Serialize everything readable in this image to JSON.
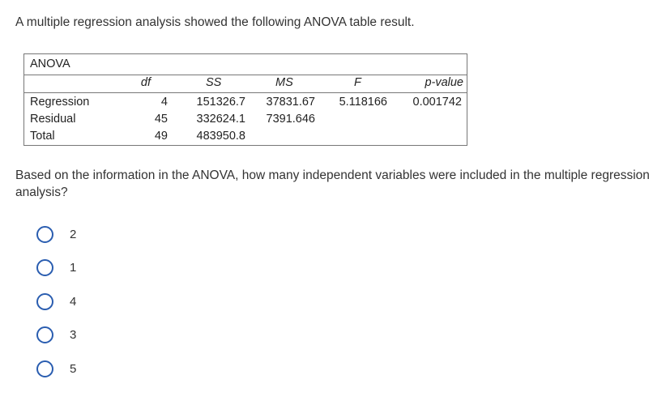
{
  "intro": "A multiple regression analysis showed the following ANOVA table result.",
  "table": {
    "title": "ANOVA",
    "headers": [
      "df",
      "SS",
      "MS",
      "F",
      "p-value"
    ],
    "rows": [
      {
        "label": "Regression",
        "df": "4",
        "ss": "151326.7",
        "ms": "37831.67",
        "f": "5.118166",
        "p": "0.001742"
      },
      {
        "label": "Residual",
        "df": "45",
        "ss": "332624.1",
        "ms": "7391.646",
        "f": "",
        "p": ""
      },
      {
        "label": "Total",
        "df": "49",
        "ss": "483950.8",
        "ms": "",
        "f": "",
        "p": ""
      }
    ]
  },
  "question": "Based on the information in the ANOVA, how many independent variables were included in the multiple regression analysis?",
  "options": [
    "2",
    "1",
    "4",
    "3",
    "5"
  ],
  "accent": "#2a5db0"
}
